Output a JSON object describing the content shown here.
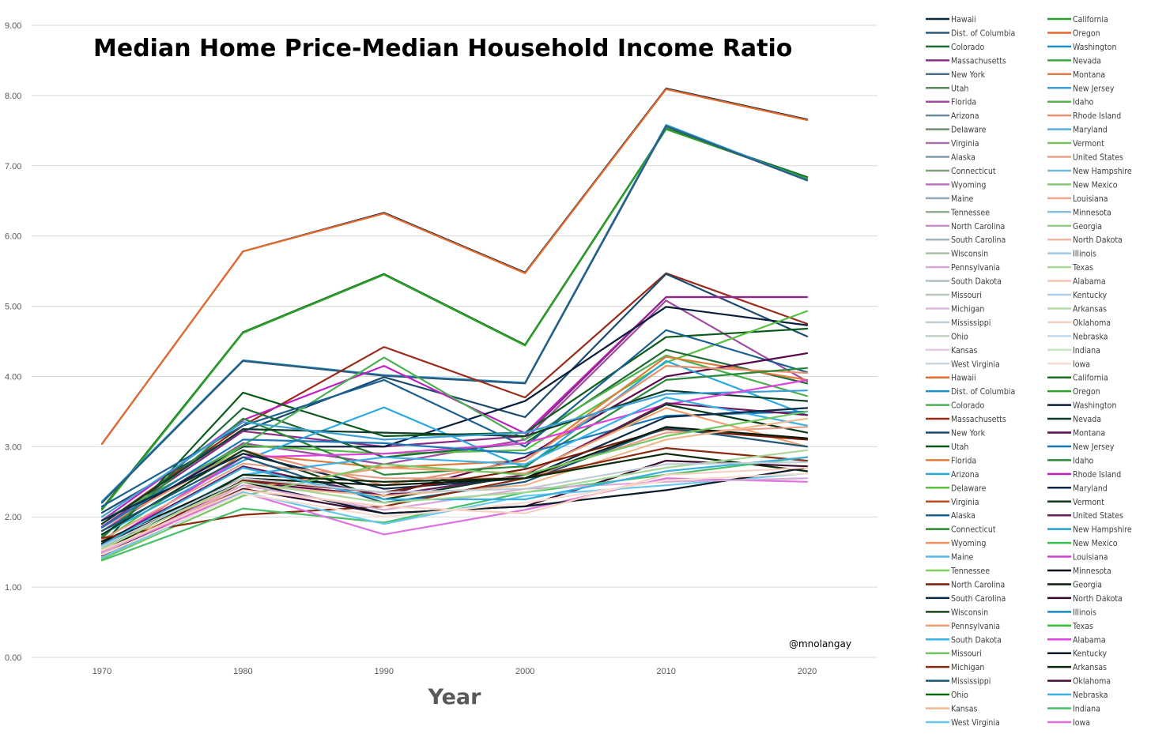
{
  "chart_data": {
    "type": "line",
    "title": "Median Home Price-Median Household Income Ratio",
    "xlabel": "Year",
    "ylabel": "",
    "credit": "@mnolangay",
    "x": [
      1970,
      1980,
      1990,
      2000,
      2010,
      2020
    ],
    "y_ticks": [
      "0.00",
      "1.00",
      "2.00",
      "3.00",
      "4.00",
      "5.00",
      "6.00",
      "7.00",
      "8.00",
      "9.00"
    ],
    "ylim": [
      0,
      9
    ],
    "grid": "horizontal",
    "legend_position": "right",
    "legend": [
      {
        "name": "Hawaii",
        "color": "#0d2a44"
      },
      {
        "name": "California",
        "color": "#2ca02c"
      },
      {
        "name": "Dist. of Columbia",
        "color": "#2e5b7a"
      },
      {
        "name": "Oregon",
        "color": "#e8692c"
      },
      {
        "name": "Colorado",
        "color": "#1f6b35"
      },
      {
        "name": "Washington",
        "color": "#1e90c8"
      },
      {
        "name": "Massachusetts",
        "color": "#8a2b86"
      },
      {
        "name": "Nevada",
        "color": "#3aa83a"
      },
      {
        "name": "New York",
        "color": "#4a6f8a"
      },
      {
        "name": "Montana",
        "color": "#e07b4a"
      },
      {
        "name": "Utah",
        "color": "#5a8a5a"
      },
      {
        "name": "New Jersey",
        "color": "#3ea0d8"
      },
      {
        "name": "Florida",
        "color": "#a04aa0"
      },
      {
        "name": "Idaho",
        "color": "#5cb04a"
      },
      {
        "name": "Arizona",
        "color": "#6b8a9a"
      },
      {
        "name": "Rhode Island",
        "color": "#e89070"
      },
      {
        "name": "Delaware",
        "color": "#6f8f6f"
      },
      {
        "name": "Maryland",
        "color": "#5aaee0"
      },
      {
        "name": "Virginia",
        "color": "#a870a8"
      },
      {
        "name": "Vermont",
        "color": "#7ac060"
      },
      {
        "name": "Alaska",
        "color": "#7e9aaa"
      },
      {
        "name": "United States",
        "color": "#e8a088"
      },
      {
        "name": "Connecticut",
        "color": "#80a080"
      },
      {
        "name": "New Hampshire",
        "color": "#70b8e0"
      },
      {
        "name": "Wyoming",
        "color": "#c070c0"
      },
      {
        "name": "New Mexico",
        "color": "#88c878"
      },
      {
        "name": "Maine",
        "color": "#90a8b8"
      },
      {
        "name": "Louisiana",
        "color": "#f0a890"
      },
      {
        "name": "Tennessee",
        "color": "#90b090"
      },
      {
        "name": "Minnesota",
        "color": "#88c0e0"
      },
      {
        "name": "North Carolina",
        "color": "#c890c8"
      },
      {
        "name": "Georgia",
        "color": "#98d088"
      },
      {
        "name": "South Carolina",
        "color": "#a0b4c0"
      },
      {
        "name": "North Dakota",
        "color": "#f0b8a0"
      },
      {
        "name": "Wisconsin",
        "color": "#a8c0a8"
      },
      {
        "name": "Illinois",
        "color": "#a0c8e8"
      },
      {
        "name": "Pennsylvania",
        "color": "#d8a8d8"
      },
      {
        "name": "Texas",
        "color": "#a8d898"
      },
      {
        "name": "South Dakota",
        "color": "#b0c0c8"
      },
      {
        "name": "Alabama",
        "color": "#f4c4b0"
      },
      {
        "name": "Missouri",
        "color": "#b8c8b8"
      },
      {
        "name": "Kentucky",
        "color": "#b0d0ec"
      },
      {
        "name": "Michigan",
        "color": "#dcb8dc"
      },
      {
        "name": "Arkansas",
        "color": "#b8dcac"
      },
      {
        "name": "Mississippi",
        "color": "#c0ccd4"
      },
      {
        "name": "Oklahoma",
        "color": "#f6d0c0"
      },
      {
        "name": "Ohio",
        "color": "#c4d0c4"
      },
      {
        "name": "Nebraska",
        "color": "#c0d8f0"
      },
      {
        "name": "Kansas",
        "color": "#e4c8e4"
      },
      {
        "name": "Indiana",
        "color": "#c8e4c0"
      },
      {
        "name": "West Virginia",
        "color": "#ccd6dc"
      },
      {
        "name": "Iowa",
        "color": "#f8dcd0"
      },
      {
        "name": "Hawaii",
        "color": "#e8692c"
      },
      {
        "name": "California",
        "color": "#1a6e1a"
      },
      {
        "name": "Dist. of Columbia",
        "color": "#1e90c8"
      },
      {
        "name": "Oregon",
        "color": "#2ca02c"
      },
      {
        "name": "Colorado",
        "color": "#4caf50"
      },
      {
        "name": "Washington",
        "color": "#0a1e3c"
      },
      {
        "name": "Massachusetts",
        "color": "#9c2a1a"
      },
      {
        "name": "Nevada",
        "color": "#0e3c28"
      },
      {
        "name": "New York",
        "color": "#1a4a6e"
      },
      {
        "name": "Montana",
        "color": "#5a0a4a"
      },
      {
        "name": "Utah",
        "color": "#0a5a1a"
      },
      {
        "name": "New Jersey",
        "color": "#1a78b8"
      },
      {
        "name": "Florida",
        "color": "#e07b3a"
      },
      {
        "name": "Idaho",
        "color": "#2a8a3a"
      },
      {
        "name": "Arizona",
        "color": "#28a8e0"
      },
      {
        "name": "Rhode Island",
        "color": "#c020c0"
      },
      {
        "name": "Delaware",
        "color": "#58c040"
      },
      {
        "name": "Maryland",
        "color": "#0e2a4a"
      },
      {
        "name": "Virginia",
        "color": "#c0481a"
      },
      {
        "name": "Vermont",
        "color": "#0a3a1a"
      },
      {
        "name": "Alaska",
        "color": "#1a6090"
      },
      {
        "name": "United States",
        "color": "#6a1a5a"
      },
      {
        "name": "Connecticut",
        "color": "#2e8b2e"
      },
      {
        "name": "New Hampshire",
        "color": "#20a0d0"
      },
      {
        "name": "Wyoming",
        "color": "#f09060"
      },
      {
        "name": "New Mexico",
        "color": "#30c050"
      },
      {
        "name": "Maine",
        "color": "#50b8e8"
      },
      {
        "name": "Louisiana",
        "color": "#d040d0"
      },
      {
        "name": "Tennessee",
        "color": "#80d060"
      },
      {
        "name": "Minnesota",
        "color": "#0a0a1a"
      },
      {
        "name": "North Carolina",
        "color": "#7a1a0a"
      },
      {
        "name": "Georgia",
        "color": "#0a1a0a"
      },
      {
        "name": "South Carolina",
        "color": "#0a2a48"
      },
      {
        "name": "North Dakota",
        "color": "#3a0a30"
      },
      {
        "name": "Wisconsin",
        "color": "#1a4a1a"
      },
      {
        "name": "Illinois",
        "color": "#1a88c0"
      },
      {
        "name": "Pennsylvania",
        "color": "#f0a070"
      },
      {
        "name": "Texas",
        "color": "#38c038"
      },
      {
        "name": "South Dakota",
        "color": "#38b0e8"
      },
      {
        "name": "Alabama",
        "color": "#e040e0"
      },
      {
        "name": "Missouri",
        "color": "#70c860"
      },
      {
        "name": "Kentucky",
        "color": "#0a1a2a"
      },
      {
        "name": "Michigan",
        "color": "#8a2a10"
      },
      {
        "name": "Arkansas",
        "color": "#0a2a0a"
      },
      {
        "name": "Mississippi",
        "color": "#1a5878"
      },
      {
        "name": "Oklahoma",
        "color": "#4a0a3a"
      },
      {
        "name": "Ohio",
        "color": "#0a6a0a"
      },
      {
        "name": "Nebraska",
        "color": "#3ab0e0"
      },
      {
        "name": "Kansas",
        "color": "#f0b890"
      },
      {
        "name": "Indiana",
        "color": "#48c068"
      },
      {
        "name": "West Virginia",
        "color": "#68c8f0"
      },
      {
        "name": "Iowa",
        "color": "#e070e0"
      }
    ],
    "series": [
      {
        "color": "#0d2a44",
        "values": [
          3.04,
          5.78,
          6.33,
          5.48,
          8.1,
          7.66
        ]
      },
      {
        "color": "#e8692c",
        "values": [
          3.04,
          5.78,
          6.32,
          5.47,
          8.09,
          7.65
        ]
      },
      {
        "color": "#1a6e1a",
        "values": [
          2.12,
          4.63,
          5.46,
          4.45,
          7.53,
          6.84
        ]
      },
      {
        "color": "#2ca02c",
        "values": [
          2.1,
          4.62,
          5.45,
          4.44,
          7.52,
          6.82
        ]
      },
      {
        "color": "#1e90c8",
        "values": [
          2.22,
          4.23,
          4.02,
          3.91,
          7.58,
          6.8
        ]
      },
      {
        "color": "#2e5b7a",
        "values": [
          2.2,
          4.22,
          4.01,
          3.9,
          7.56,
          6.79
        ]
      },
      {
        "color": "#9c2a1a",
        "values": [
          1.9,
          3.3,
          4.42,
          3.7,
          5.47,
          4.75
        ]
      },
      {
        "color": "#1a4a6e",
        "values": [
          2.06,
          3.22,
          3.99,
          3.42,
          5.46,
          4.57
        ]
      },
      {
        "color": "#c020c0",
        "values": [
          1.95,
          3.38,
          4.15,
          3.19,
          5.13,
          5.13
        ]
      },
      {
        "color": "#8a2b86",
        "values": [
          1.86,
          3.22,
          3.0,
          3.15,
          5.13,
          5.13
        ]
      },
      {
        "color": "#a04aa0",
        "values": [
          1.8,
          3.05,
          2.75,
          3.1,
          5.08,
          3.93
        ]
      },
      {
        "color": "#0a1e3c",
        "values": [
          1.85,
          3.0,
          3.0,
          3.65,
          4.99,
          4.73
        ]
      },
      {
        "color": "#0a5a1a",
        "values": [
          1.6,
          3.77,
          3.15,
          3.2,
          4.56,
          4.68
        ]
      },
      {
        "color": "#58c040",
        "values": [
          1.65,
          3.02,
          2.9,
          2.95,
          4.2,
          4.93
        ]
      },
      {
        "color": "#1f6b35",
        "values": [
          1.7,
          3.55,
          2.85,
          3.05,
          4.38,
          3.9
        ]
      },
      {
        "color": "#4caf50",
        "values": [
          1.95,
          3.02,
          4.27,
          3.1,
          4.3,
          3.72
        ]
      },
      {
        "color": "#e07b3a",
        "values": [
          1.55,
          2.9,
          2.7,
          2.8,
          4.28,
          3.95
        ]
      },
      {
        "color": "#1a6090",
        "values": [
          2.15,
          3.3,
          3.95,
          3.0,
          4.66,
          4.06
        ]
      },
      {
        "color": "#5a0a4a",
        "values": [
          1.4,
          2.5,
          2.3,
          2.85,
          4.0,
          4.33
        ]
      },
      {
        "color": "#28a8e0",
        "values": [
          1.75,
          2.8,
          3.56,
          2.7,
          4.22,
          3.45
        ]
      },
      {
        "color": "#e89070",
        "values": [
          1.85,
          2.95,
          2.45,
          2.8,
          4.15,
          4.05
        ]
      },
      {
        "color": "#2a8a3a",
        "values": [
          1.72,
          3.4,
          2.6,
          2.72,
          3.95,
          4.12
        ]
      },
      {
        "color": "#0e3c28",
        "values": [
          1.9,
          3.25,
          3.2,
          3.15,
          3.8,
          3.65
        ]
      },
      {
        "color": "#3ea0d8",
        "values": [
          2.0,
          3.35,
          3.1,
          3.2,
          3.75,
          3.8
        ]
      },
      {
        "color": "#e040e0",
        "values": [
          1.6,
          2.85,
          2.9,
          3.05,
          3.6,
          3.95
        ]
      },
      {
        "color": "#1a78b8",
        "values": [
          1.85,
          3.1,
          3.05,
          2.9,
          3.44,
          3.5
        ]
      },
      {
        "color": "#0a3a1a",
        "values": [
          1.75,
          2.95,
          2.25,
          2.6,
          3.6,
          3.2
        ]
      },
      {
        "color": "#6a1a5a",
        "values": [
          1.62,
          2.72,
          2.3,
          2.6,
          3.62,
          3.45
        ]
      },
      {
        "color": "#38b0e8",
        "values": [
          1.55,
          2.6,
          2.85,
          2.75,
          3.7,
          3.3
        ]
      },
      {
        "color": "#0a2a48",
        "values": [
          1.95,
          2.9,
          2.4,
          2.55,
          3.42,
          3.55
        ]
      },
      {
        "color": "#e8a088",
        "values": [
          1.68,
          2.76,
          2.55,
          2.55,
          3.2,
          3.28
        ]
      },
      {
        "color": "#f0a070",
        "values": [
          1.55,
          2.4,
          2.7,
          2.62,
          3.55,
          3.0
        ]
      },
      {
        "color": "#7a1a0a",
        "values": [
          1.45,
          2.52,
          2.35,
          2.68,
          3.25,
          3.1
        ]
      },
      {
        "color": "#1a5878",
        "values": [
          1.8,
          2.85,
          2.2,
          2.5,
          3.27,
          3.0
        ]
      },
      {
        "color": "#0a1a0a",
        "values": [
          1.65,
          2.55,
          2.45,
          2.55,
          3.28,
          3.12
        ]
      },
      {
        "color": "#70c860",
        "values": [
          1.4,
          2.3,
          2.75,
          2.6,
          3.15,
          3.5
        ]
      },
      {
        "color": "#f0b890",
        "values": [
          1.6,
          2.45,
          2.3,
          2.45,
          3.1,
          3.4
        ]
      },
      {
        "color": "#8a2a10",
        "values": [
          1.7,
          2.03,
          2.15,
          2.55,
          2.98,
          2.8
        ]
      },
      {
        "color": "#0a2a0a",
        "values": [
          1.5,
          2.6,
          2.5,
          2.55,
          2.9,
          2.65
        ]
      },
      {
        "color": "#3a0a30",
        "values": [
          1.45,
          2.4,
          2.05,
          2.15,
          2.8,
          2.72
        ]
      },
      {
        "color": "#48c068",
        "values": [
          1.38,
          2.12,
          1.92,
          2.35,
          2.6,
          2.85
        ]
      },
      {
        "color": "#e070e0",
        "values": [
          1.5,
          2.35,
          1.75,
          2.1,
          2.55,
          2.5
        ]
      },
      {
        "color": "#68c8f0",
        "values": [
          1.42,
          2.35,
          1.9,
          2.3,
          2.45,
          2.62
        ]
      },
      {
        "color": "#0a1a2a",
        "values": [
          1.62,
          2.5,
          2.05,
          2.15,
          2.38,
          2.7
        ]
      },
      {
        "color": "#d8a8d8",
        "values": [
          1.48,
          2.45,
          2.1,
          2.4,
          2.5,
          2.55
        ]
      },
      {
        "color": "#3ab0e0",
        "values": [
          1.6,
          2.7,
          2.25,
          2.25,
          2.65,
          2.85
        ]
      },
      {
        "color": "#a8d898",
        "values": [
          1.55,
          2.5,
          2.2,
          2.35,
          2.7,
          2.95
        ]
      },
      {
        "color": "#f6d0c0",
        "values": [
          1.52,
          2.38,
          2.15,
          2.05,
          2.6,
          2.7
        ]
      },
      {
        "color": "#c0ccd4",
        "values": [
          1.58,
          2.55,
          2.35,
          2.4,
          2.75,
          2.78
        ]
      },
      {
        "color": "#f8dcd0",
        "values": [
          1.46,
          2.33,
          2.0,
          2.2,
          2.52,
          2.62
        ]
      }
    ]
  }
}
